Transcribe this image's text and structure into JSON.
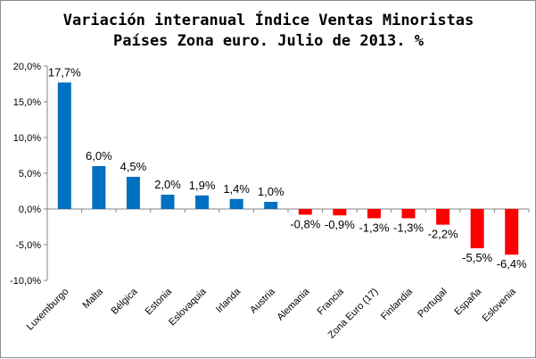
{
  "chart_data": {
    "type": "bar",
    "title_lines": [
      "Variación interanual Índice Ventas Minoristas",
      "Países Zona euro. Julio de 2013. %"
    ],
    "categories": [
      "Luxemburgo",
      "Malta",
      "Bélgica",
      "Estonia",
      "Eslovaquia",
      "Irlanda",
      "Austria",
      "Alemania",
      "Francia",
      "Zona Euro (17)",
      "Finlandia",
      "Portugal",
      "España",
      "Eslovenia"
    ],
    "values": [
      17.7,
      6.0,
      4.5,
      2.0,
      1.9,
      1.4,
      1.0,
      -0.8,
      -0.9,
      -1.3,
      -1.3,
      -2.2,
      -5.5,
      -6.4
    ],
    "value_labels": [
      "17,7%",
      "6,0%",
      "4,5%",
      "2,0%",
      "1,9%",
      "1,4%",
      "1,0%",
      "-0,8%",
      "-0,9%",
      "-1,3%",
      "-1,3%",
      "-2,2%",
      "-5,5%",
      "-6,4%"
    ],
    "ylim": [
      -10,
      20
    ],
    "yticks": [
      20,
      15,
      10,
      5,
      0,
      -5,
      -10
    ],
    "ytick_labels": [
      "20,0%",
      "15,0%",
      "10,0%",
      "5,0%",
      "0,0%",
      "-5,0%",
      "-10,0%"
    ],
    "grid": false,
    "legend": "none",
    "colors": {
      "positive": "#0070c0",
      "negative": "#ff0000",
      "axis": "#868686"
    }
  }
}
